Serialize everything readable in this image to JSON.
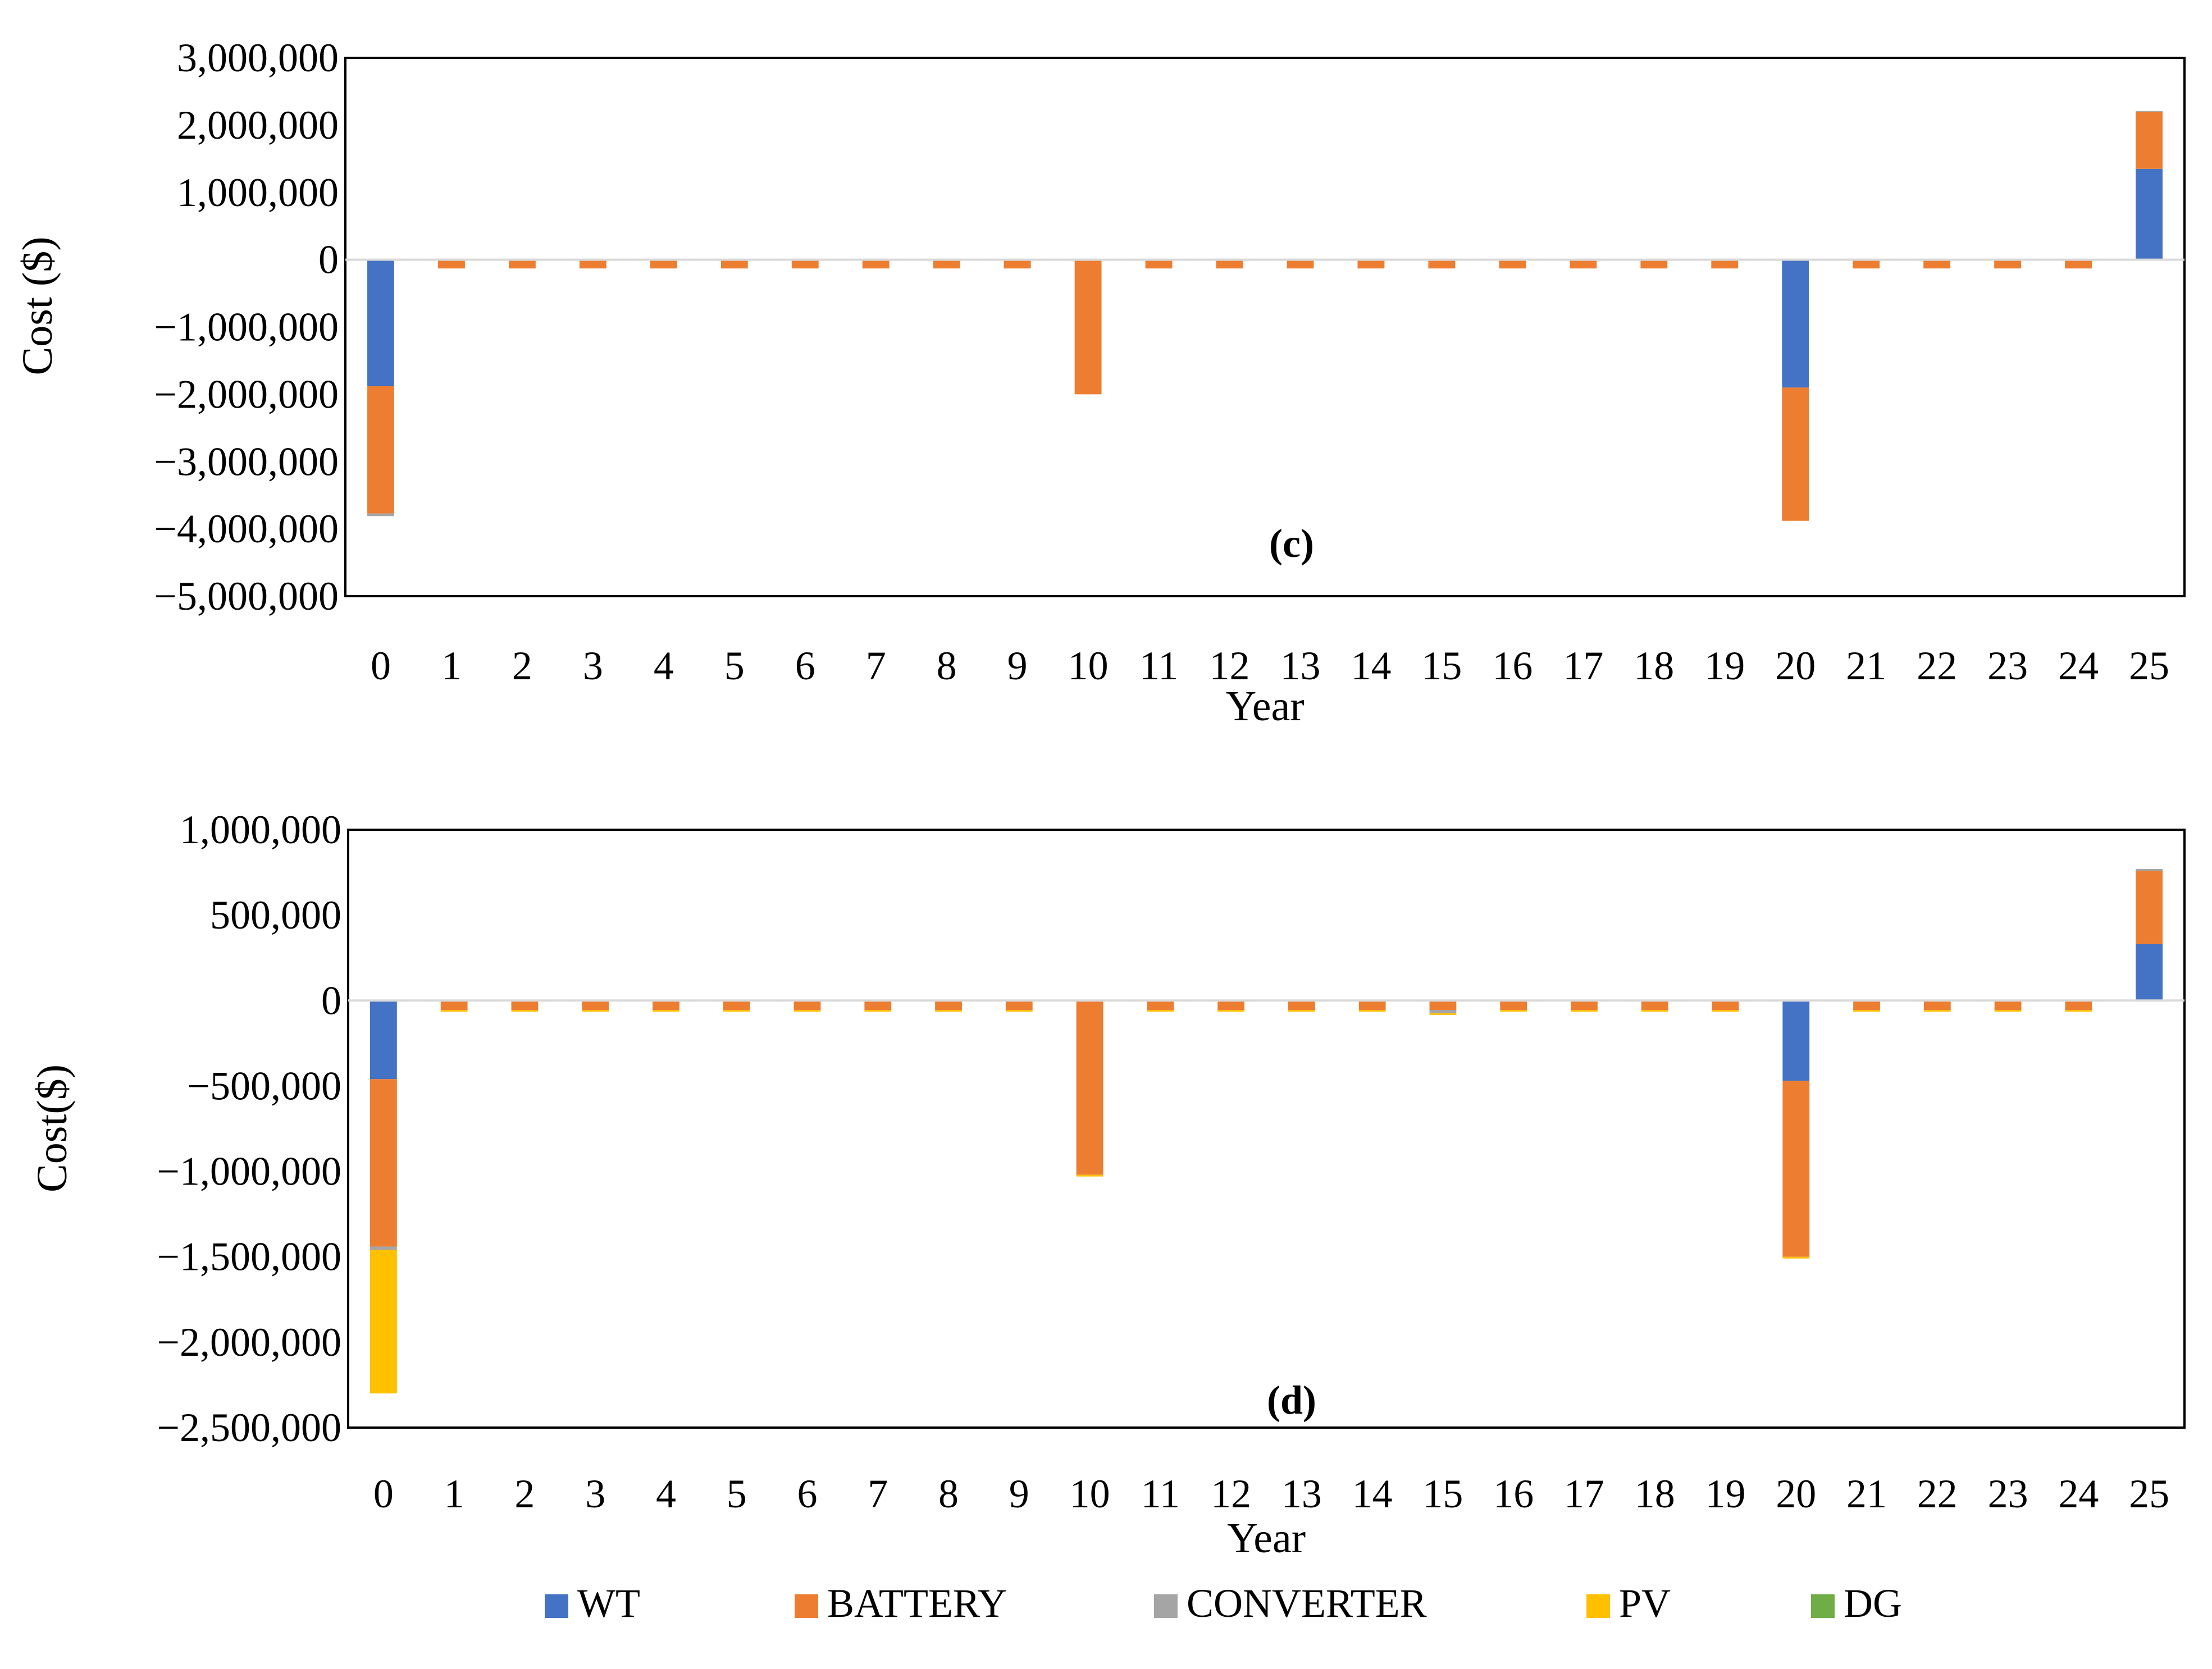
{
  "colors": {
    "WT": "#4472C4",
    "BATTERY": "#ED7D31",
    "CONVERTER": "#A5A5A5",
    "PV": "#FFC000",
    "DG": "#70AD47"
  },
  "legend": {
    "items": [
      {
        "key": "WT",
        "label": "WT"
      },
      {
        "key": "BATTERY",
        "label": "BATTERY"
      },
      {
        "key": "CONVERTER",
        "label": "CONVERTER"
      },
      {
        "key": "PV",
        "label": "PV"
      },
      {
        "key": "DG",
        "label": "DG"
      }
    ]
  },
  "chart_data": [
    {
      "type": "bar",
      "stacked": true,
      "panel_label": "(c)",
      "xlabel": "Year",
      "ylabel": "Cost ($)",
      "ylim": [
        -5000000,
        3000000
      ],
      "yticks": [
        3000000,
        2000000,
        1000000,
        0,
        -1000000,
        -2000000,
        -3000000,
        -4000000,
        -5000000
      ],
      "ytick_labels": [
        "3,000,000",
        "2,000,000",
        "1,000,000",
        "0",
        "−1,000,000",
        "−2,000,000",
        "−3,000,000",
        "−4,000,000",
        "−5,000,000"
      ],
      "categories": [
        "0",
        "1",
        "2",
        "3",
        "4",
        "5",
        "6",
        "7",
        "8",
        "9",
        "10",
        "11",
        "12",
        "13",
        "14",
        "15",
        "16",
        "17",
        "18",
        "19",
        "20",
        "21",
        "22",
        "23",
        "24",
        "25"
      ],
      "series": [
        {
          "name": "WT",
          "values": [
            -1880000,
            0,
            0,
            0,
            0,
            0,
            0,
            0,
            0,
            0,
            0,
            0,
            0,
            0,
            0,
            0,
            0,
            0,
            0,
            0,
            -1900000,
            0,
            0,
            0,
            0,
            1350000
          ]
        },
        {
          "name": "BATTERY",
          "values": [
            -1890000,
            -130000,
            -130000,
            -130000,
            -130000,
            -130000,
            -130000,
            -130000,
            -130000,
            -130000,
            -2000000,
            -130000,
            -130000,
            -130000,
            -130000,
            -130000,
            -130000,
            -130000,
            -130000,
            -130000,
            -1980000,
            -130000,
            -130000,
            -130000,
            -130000,
            850000
          ]
        },
        {
          "name": "CONVERTER",
          "values": [
            -40000,
            0,
            0,
            0,
            0,
            0,
            0,
            0,
            0,
            0,
            0,
            0,
            0,
            0,
            0,
            0,
            0,
            0,
            0,
            0,
            0,
            0,
            0,
            0,
            0,
            10000
          ]
        },
        {
          "name": "PV",
          "values": [
            0,
            0,
            0,
            0,
            0,
            0,
            0,
            0,
            0,
            0,
            0,
            0,
            0,
            0,
            0,
            0,
            0,
            0,
            0,
            0,
            0,
            0,
            0,
            0,
            0,
            0
          ]
        },
        {
          "name": "DG",
          "values": [
            0,
            0,
            0,
            0,
            0,
            0,
            0,
            0,
            0,
            0,
            0,
            0,
            0,
            0,
            0,
            0,
            0,
            0,
            0,
            0,
            0,
            0,
            0,
            0,
            0,
            0
          ]
        }
      ]
    },
    {
      "type": "bar",
      "stacked": true,
      "panel_label": "(d)",
      "xlabel": "Year",
      "ylabel": "Cost($)",
      "ylim": [
        -2500000,
        1000000
      ],
      "yticks": [
        1000000,
        500000,
        0,
        -500000,
        -1000000,
        -1500000,
        -2000000,
        -2500000
      ],
      "ytick_labels": [
        "1,000,000",
        "500,000",
        "0",
        "−500,000",
        "−1,000,000",
        "−1,500,000",
        "−2,000,000",
        "−2,500,000"
      ],
      "categories": [
        "0",
        "1",
        "2",
        "3",
        "4",
        "5",
        "6",
        "7",
        "8",
        "9",
        "10",
        "11",
        "12",
        "13",
        "14",
        "15",
        "16",
        "17",
        "18",
        "19",
        "20",
        "21",
        "22",
        "23",
        "24",
        "25"
      ],
      "series": [
        {
          "name": "WT",
          "values": [
            -460000,
            0,
            0,
            0,
            0,
            0,
            0,
            0,
            0,
            0,
            0,
            0,
            0,
            0,
            0,
            0,
            0,
            0,
            0,
            0,
            -470000,
            0,
            0,
            0,
            0,
            330000
          ]
        },
        {
          "name": "BATTERY",
          "values": [
            -980000,
            -55000,
            -55000,
            -55000,
            -55000,
            -55000,
            -55000,
            -55000,
            -55000,
            -55000,
            -1020000,
            -55000,
            -55000,
            -55000,
            -55000,
            -55000,
            -55000,
            -55000,
            -55000,
            -55000,
            -1030000,
            -55000,
            -55000,
            -55000,
            -55000,
            430000
          ]
        },
        {
          "name": "CONVERTER",
          "values": [
            -20000,
            0,
            0,
            0,
            0,
            0,
            0,
            0,
            0,
            0,
            0,
            0,
            0,
            0,
            0,
            -20000,
            0,
            0,
            0,
            0,
            0,
            0,
            0,
            0,
            0,
            10000
          ]
        },
        {
          "name": "PV",
          "values": [
            -840000,
            -10000,
            -10000,
            -10000,
            -10000,
            -10000,
            -10000,
            -10000,
            -10000,
            -10000,
            -10000,
            -10000,
            -10000,
            -10000,
            -10000,
            -10000,
            -10000,
            -10000,
            -10000,
            -10000,
            -10000,
            -10000,
            -10000,
            -10000,
            -10000,
            0
          ]
        },
        {
          "name": "DG",
          "values": [
            0,
            0,
            0,
            0,
            0,
            0,
            0,
            0,
            0,
            0,
            0,
            0,
            0,
            0,
            0,
            0,
            0,
            0,
            0,
            0,
            0,
            0,
            0,
            0,
            0,
            0
          ]
        }
      ]
    }
  ]
}
